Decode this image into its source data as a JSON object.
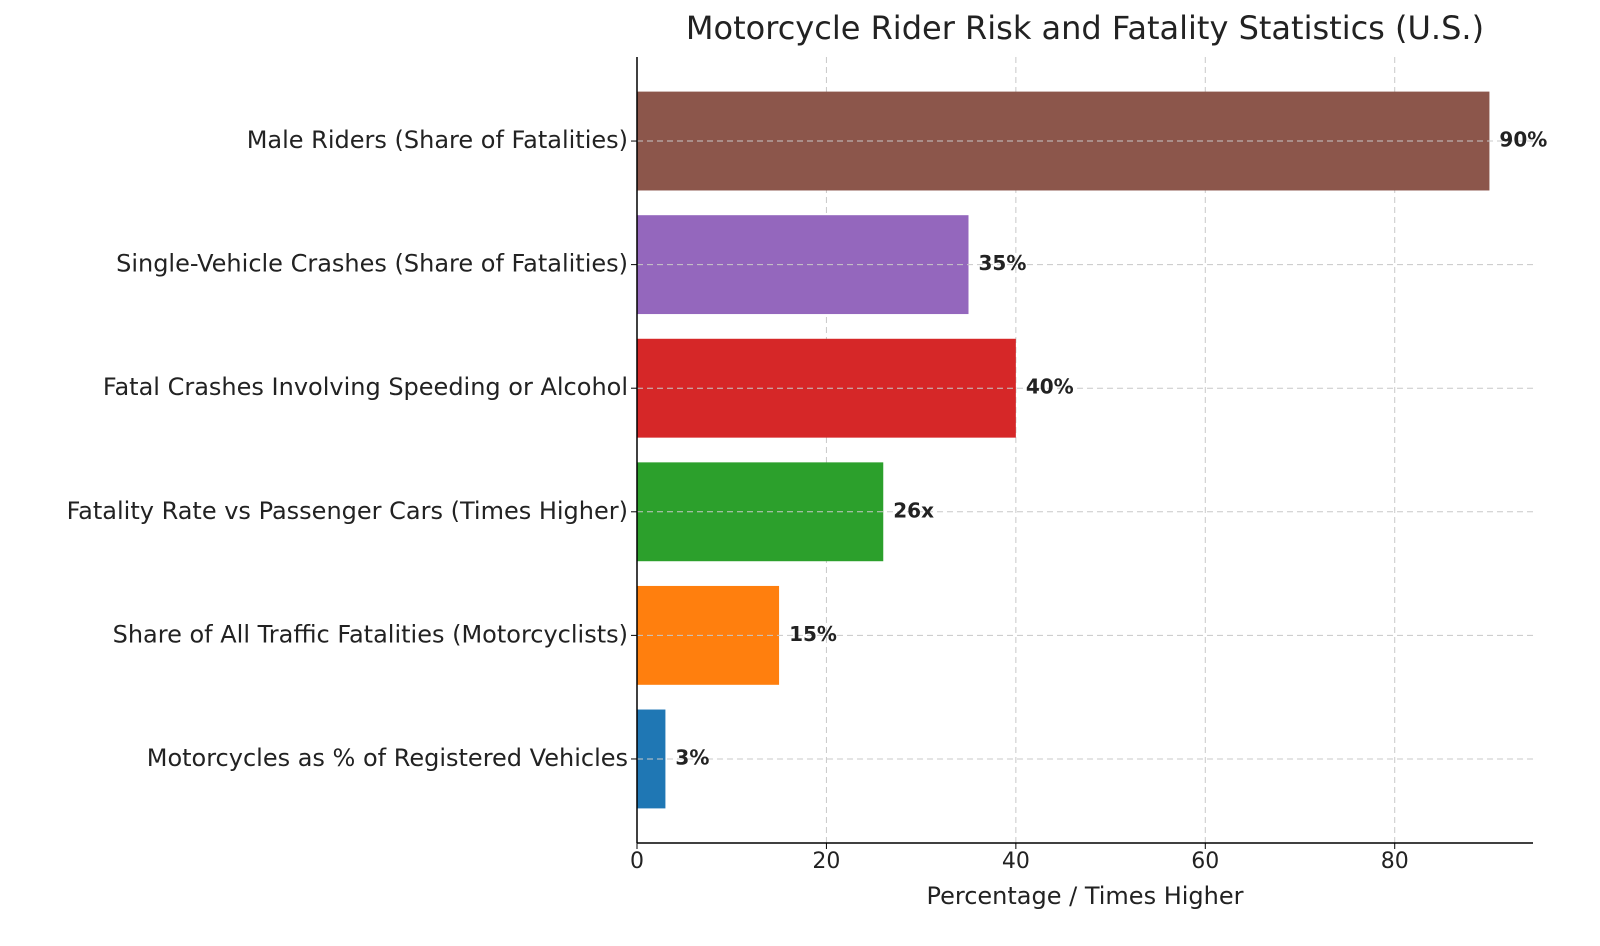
{
  "chart_data": {
    "type": "barh",
    "title": "Motorcycle Rider Risk and Fatality Statistics (U.S.)",
    "xlabel": "Percentage / Times Higher",
    "categories": [
      "Motorcycles as % of Registered Vehicles",
      "Share of All Traffic Fatalities (Motorcyclists)",
      "Fatality Rate vs Passenger Cars (Times Higher)",
      "Fatal Crashes Involving Speeding or Alcohol",
      "Single-Vehicle Crashes (Share of Fatalities)",
      "Male Riders (Share of Fatalities)"
    ],
    "values": [
      3,
      15,
      26,
      40,
      35,
      90
    ],
    "value_labels": [
      "3%",
      "15%",
      "26x",
      "40%",
      "35%",
      "90%"
    ],
    "colors": [
      "#1f77b4",
      "#ff7f0e",
      "#2ca02c",
      "#d62728",
      "#9467bd",
      "#8c564b"
    ],
    "xlim": [
      0,
      94.6
    ],
    "xticks": [
      0,
      20,
      40,
      60,
      80
    ],
    "grid": true
  }
}
